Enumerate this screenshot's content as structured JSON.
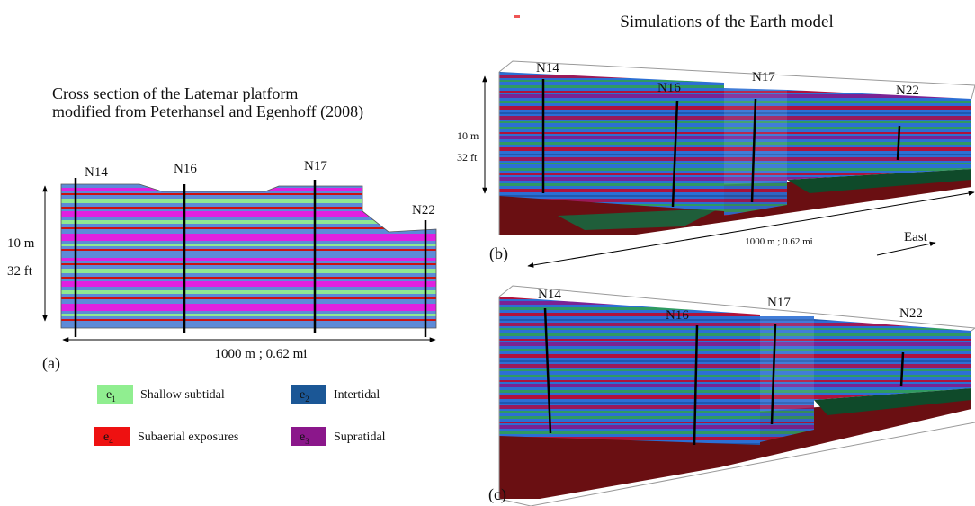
{
  "panel_a": {
    "title": [
      "Cross section of the Latemar platform",
      "modified from Peterhansel and Egenhoff (2008)"
    ],
    "wells": [
      "N14",
      "N16",
      "N17",
      "N22"
    ],
    "height_labels": [
      "10 m",
      "32 ft"
    ],
    "width_label": "1000 m ; 0.62 mi",
    "tag": "(a)"
  },
  "legend": [
    {
      "symbol": "e",
      "subscript": "1",
      "label": "Shallow subtidal",
      "color": "#90ee90"
    },
    {
      "symbol": "e",
      "subscript": "2",
      "label": "Intertidal",
      "color": "#1b5796"
    },
    {
      "symbol": "e",
      "subscript": "4",
      "label": "Subaerial exposures",
      "color": "#ee1111"
    },
    {
      "symbol": "e",
      "subscript": "3",
      "label": "Supratidal",
      "color": "#8b178b"
    }
  ],
  "simulations": {
    "title": "Simulations of the Earth model",
    "panel_b": {
      "wells": [
        "N14",
        "N16",
        "N17",
        "N22"
      ],
      "height_labels": [
        "10 m",
        "32 ft"
      ],
      "width_label": "1000 m ; 0.62 mi",
      "direction": "East",
      "tag": "(b)"
    },
    "panel_c": {
      "wells": [
        "N14",
        "N16",
        "N17",
        "N22"
      ],
      "tag": "(c)"
    }
  }
}
